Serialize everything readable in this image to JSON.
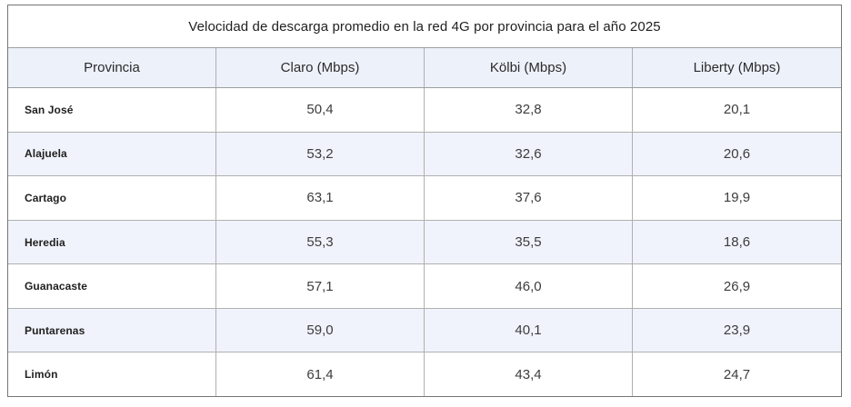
{
  "table": {
    "title": "Velocidad de descarga promedio en la red 4G por provincia para el año 2025",
    "columns": [
      "Provincia",
      "Claro (Mbps)",
      "Kölbi (Mbps)",
      "Liberty (Mbps)"
    ],
    "rows": [
      [
        "San José",
        "50,4",
        "32,8",
        "20,1"
      ],
      [
        "Alajuela",
        "53,2",
        "32,6",
        "20,6"
      ],
      [
        "Cartago",
        "63,1",
        "37,6",
        "19,9"
      ],
      [
        "Heredia",
        "55,3",
        "35,5",
        "18,6"
      ],
      [
        "Guanacaste",
        "57,1",
        "46,0",
        "26,9"
      ],
      [
        "Puntarenas",
        "59,0",
        "40,1",
        "23,9"
      ],
      [
        "Limón",
        "61,4",
        "43,4",
        "24,7"
      ]
    ]
  },
  "colors": {
    "header_bg": "#edf1fa",
    "stripe_bg": "#f0f3fb",
    "outer_border": "#757575",
    "mid_border": "#9e9e9e",
    "inner_border": "#b0b0b0",
    "title_text": "#1f1f1f",
    "header_text": "#2b2b2b",
    "province_text": "#212121",
    "value_text": "#3d3d3d"
  },
  "chart_data": {
    "type": "table",
    "title": "Velocidad de descarga promedio en la red 4G por provincia para el año 2025",
    "categories": [
      "San José",
      "Alajuela",
      "Cartago",
      "Heredia",
      "Guanacaste",
      "Puntarenas",
      "Limón"
    ],
    "series": [
      {
        "name": "Claro (Mbps)",
        "values": [
          50.4,
          53.2,
          63.1,
          55.3,
          57.1,
          59.0,
          61.4
        ]
      },
      {
        "name": "Kölbi (Mbps)",
        "values": [
          32.8,
          32.6,
          37.6,
          35.5,
          46.0,
          40.1,
          43.4
        ]
      },
      {
        "name": "Liberty (Mbps)",
        "values": [
          20.1,
          20.6,
          19.9,
          18.6,
          26.9,
          23.9,
          24.7
        ]
      }
    ],
    "unit": "Mbps",
    "decimal_separator": ",",
    "layout": {
      "striped_rows": true,
      "value_alignment": "center",
      "category_alignment": "left"
    }
  }
}
